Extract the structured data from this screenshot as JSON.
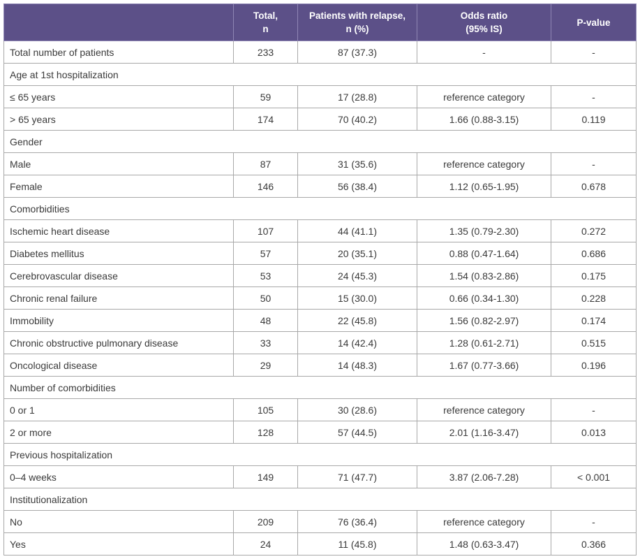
{
  "header": {
    "col1": "",
    "col2_line1": "Total,",
    "col2_line2": "n",
    "col3_line1": "Patients with relapse,",
    "col3_line2": "n (%)",
    "col4_line1": "Odds ratio",
    "col4_line2": "(95% IS)",
    "col5": "P-value"
  },
  "rows": [
    {
      "type": "data",
      "label": "Total number of patients",
      "total": "233",
      "relapse": "87 (37.3)",
      "or": "-",
      "p": "-"
    },
    {
      "type": "group",
      "label": "Age at 1st hospitalization"
    },
    {
      "type": "data",
      "label": "≤ 65 years",
      "total": "59",
      "relapse": "17 (28.8)",
      "or": "reference category",
      "p": "-"
    },
    {
      "type": "data",
      "label": "> 65 years",
      "total": "174",
      "relapse": "70 (40.2)",
      "or": "1.66 (0.88-3.15)",
      "p": "0.119"
    },
    {
      "type": "group",
      "label": "Gender"
    },
    {
      "type": "data",
      "label": "Male",
      "total": "87",
      "relapse": "31 (35.6)",
      "or": "reference category",
      "p": "-"
    },
    {
      "type": "data",
      "label": "Female",
      "total": "146",
      "relapse": "56 (38.4)",
      "or": "1.12 (0.65-1.95)",
      "p": "0.678"
    },
    {
      "type": "group",
      "label": "Comorbidities"
    },
    {
      "type": "data",
      "label": "Ischemic heart disease",
      "total": "107",
      "relapse": "44 (41.1)",
      "or": "1.35 (0.79-2.30)",
      "p": "0.272"
    },
    {
      "type": "data",
      "label": "Diabetes mellitus",
      "total": "57",
      "relapse": "20 (35.1)",
      "or": "0.88 (0.47-1.64)",
      "p": "0.686"
    },
    {
      "type": "data",
      "label": "Cerebrovascular disease",
      "total": "53",
      "relapse": "24 (45.3)",
      "or": "1.54 (0.83-2.86)",
      "p": "0.175"
    },
    {
      "type": "data",
      "label": "Chronic renal failure",
      "total": "50",
      "relapse": "15 (30.0)",
      "or": "0.66 (0.34-1.30)",
      "p": "0.228"
    },
    {
      "type": "data",
      "label": "Immobility",
      "total": "48",
      "relapse": "22 (45.8)",
      "or": "1.56 (0.82-2.97)",
      "p": "0.174"
    },
    {
      "type": "data",
      "label": "Chronic obstructive pulmonary disease",
      "total": "33",
      "relapse": "14 (42.4)",
      "or": "1.28 (0.61-2.71)",
      "p": "0.515"
    },
    {
      "type": "data",
      "label": "Oncological disease",
      "total": "29",
      "relapse": "14 (48.3)",
      "or": "1.67 (0.77-3.66)",
      "p": "0.196"
    },
    {
      "type": "group",
      "label": "Number of comorbidities"
    },
    {
      "type": "data",
      "label": "0 or 1",
      "total": "105",
      "relapse": "30 (28.6)",
      "or": "reference category",
      "p": "-"
    },
    {
      "type": "data",
      "label": "2 or more",
      "total": "128",
      "relapse": "57 (44.5)",
      "or": "2.01 (1.16-3.47)",
      "p": "0.013"
    },
    {
      "type": "group",
      "label": "Previous hospitalization"
    },
    {
      "type": "data",
      "label": "0–4 weeks",
      "total": "149",
      "relapse": "71 (47.7)",
      "or": "3.87 (2.06-7.28)",
      "p": "< 0.001"
    },
    {
      "type": "group",
      "label": "Institutionalization"
    },
    {
      "type": "data",
      "label": "No",
      "total": "209",
      "relapse": "76 (36.4)",
      "or": "reference category",
      "p": "-"
    },
    {
      "type": "data",
      "label": "Yes",
      "total": "24",
      "relapse": "11 (45.8)",
      "or": "1.48 (0.63-3.47)",
      "p": "0.366"
    }
  ]
}
